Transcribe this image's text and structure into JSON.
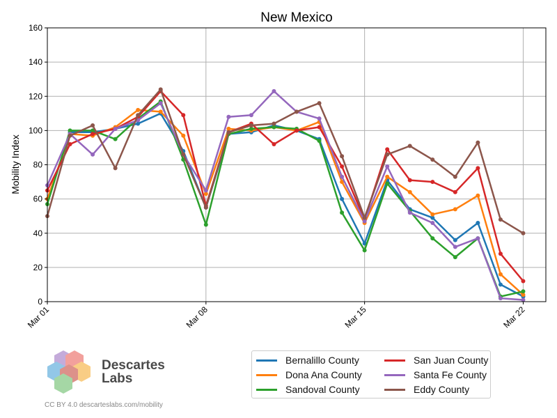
{
  "chart_data": {
    "type": "line",
    "title": "New Mexico",
    "xlabel": "",
    "ylabel": "Mobility Index",
    "ylim": [
      0,
      160
    ],
    "yticks": [
      0,
      20,
      40,
      60,
      80,
      100,
      120,
      140,
      160
    ],
    "xlim": [
      "2020-03-01",
      "2020-03-23"
    ],
    "xticks": [
      {
        "date": "2020-03-01",
        "label": "Mar 01"
      },
      {
        "date": "2020-03-08",
        "label": "Mar 08"
      },
      {
        "date": "2020-03-15",
        "label": "Mar 15"
      },
      {
        "date": "2020-03-22",
        "label": "Mar 22"
      }
    ],
    "grid": true,
    "x": [
      "2020-03-01",
      "2020-03-02",
      "2020-03-03",
      "2020-03-04",
      "2020-03-05",
      "2020-03-06",
      "2020-03-07",
      "2020-03-08",
      "2020-03-09",
      "2020-03-10",
      "2020-03-11",
      "2020-03-12",
      "2020-03-13",
      "2020-03-14",
      "2020-03-15",
      "2020-03-16",
      "2020-03-17",
      "2020-03-18",
      "2020-03-19",
      "2020-03-20",
      "2020-03-21",
      "2020-03-22"
    ],
    "series": [
      {
        "name": "Bernalillo County",
        "color": "#1f77b4",
        "values": [
          null,
          99,
          99,
          101,
          104,
          110,
          88,
          55,
          98,
          99,
          103,
          100,
          95,
          60,
          34,
          71,
          54,
          49,
          36,
          46,
          10,
          3
        ]
      },
      {
        "name": "Dona Ana County",
        "color": "#ff7f0e",
        "values": [
          60,
          98,
          97,
          102,
          112,
          111,
          97,
          63,
          101,
          100,
          102,
          100,
          105,
          70,
          46,
          73,
          64,
          51,
          54,
          62,
          16,
          4
        ]
      },
      {
        "name": "Sandoval County",
        "color": "#2ca02c",
        "values": [
          57,
          100,
          100,
          95,
          107,
          117,
          83,
          45,
          98,
          101,
          102,
          101,
          94,
          52,
          30,
          69,
          53,
          37,
          26,
          37,
          3,
          6
        ]
      },
      {
        "name": "San Juan County",
        "color": "#d62728",
        "values": [
          65,
          92,
          98,
          101,
          108,
          123,
          109,
          56,
          99,
          104,
          92,
          100,
          102,
          79,
          48,
          89,
          71,
          70,
          64,
          78,
          28,
          12
        ]
      },
      {
        "name": "Santa Fe County",
        "color": "#9467bd",
        "values": [
          68,
          98,
          86,
          101,
          106,
          116,
          86,
          65,
          108,
          109,
          123,
          111,
          107,
          73,
          47,
          79,
          52,
          46,
          32,
          37,
          2,
          1
        ]
      },
      {
        "name": "Eddy County",
        "color": "#8c564b",
        "values": [
          50,
          97,
          103,
          78,
          109,
          124,
          86,
          55,
          99,
          103,
          104,
          111,
          116,
          85,
          49,
          86,
          91,
          83,
          73,
          93,
          48,
          40
        ]
      }
    ]
  },
  "logo": {
    "line1": "Descartes",
    "line2": "Labs"
  },
  "credit": "CC BY 4.0  descarteslabs.com/mobility"
}
